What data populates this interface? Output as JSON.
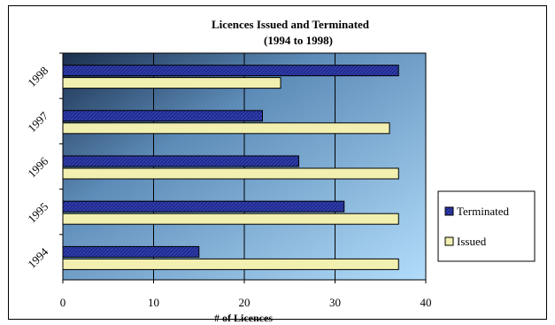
{
  "chart_data": {
    "type": "bar",
    "orientation": "horizontal",
    "title": "Licences Issued and Terminated",
    "subtitle": "(1994 to 1998)",
    "xlabel": "# of Licences",
    "ylabel": "",
    "categories": [
      "1994",
      "1995",
      "1996",
      "1997",
      "1998"
    ],
    "series": [
      {
        "name": "Terminated",
        "values": [
          15,
          31,
          26,
          22,
          37
        ],
        "color": "#1f2a8c"
      },
      {
        "name": "Issued",
        "values": [
          37,
          37,
          37,
          36,
          24
        ],
        "color": "#f2f0b0"
      }
    ],
    "xlim": [
      0,
      40
    ],
    "xticks": [
      "0",
      "10",
      "20",
      "30",
      "40"
    ],
    "grid": true,
    "legend": "right",
    "plot_background": "#8ec0ee"
  }
}
